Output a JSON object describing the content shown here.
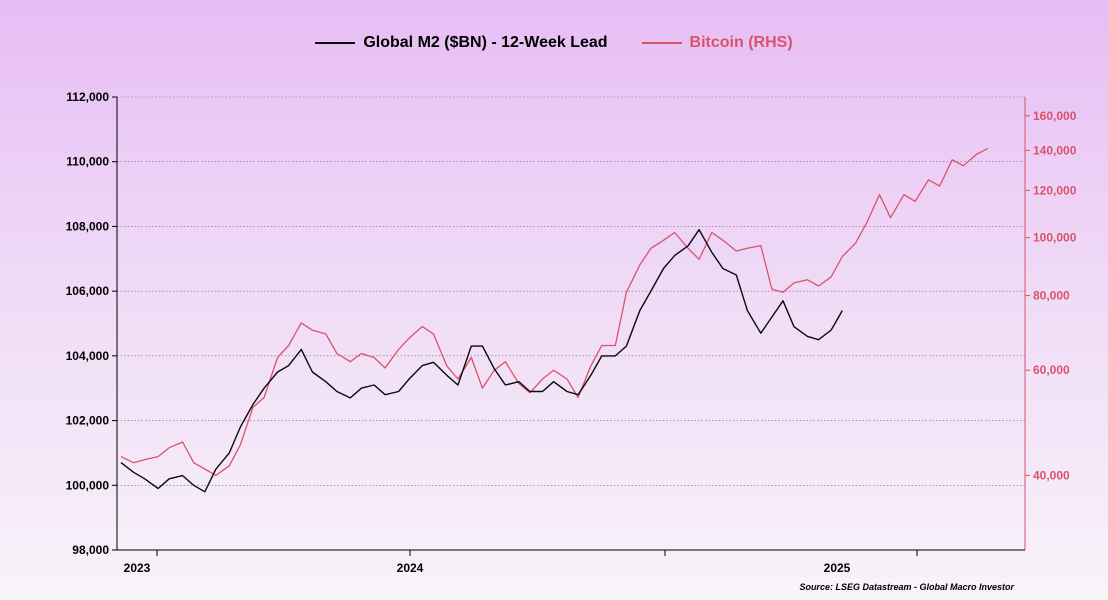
{
  "colors": {
    "m2": "#0a0a0a",
    "bitcoin": "#d9536b",
    "background_top": "#e7bdf5",
    "background_bottom": "#f8f3f9"
  },
  "chart_data": {
    "type": "line",
    "title": "",
    "source": "Source: LSEG Datastream - Global Macro Investor",
    "legend_position": "top-center",
    "grid": true,
    "x_ticks": [
      "2023",
      "2024",
      "2025"
    ],
    "y_left": {
      "label": "",
      "min": 98000,
      "max": 112000,
      "ticks": [
        "98,000",
        "100,000",
        "102,000",
        "104,000",
        "106,000",
        "108,000",
        "110,000",
        "112,000"
      ]
    },
    "y_right": {
      "label": "",
      "scale": "log",
      "min": 30000,
      "max": 172000,
      "ticks": [
        "40,000",
        "60,000",
        "80,000",
        "100,000",
        "120,000",
        "140,000",
        "160,000"
      ]
    },
    "series": [
      {
        "name": "Global M2 ($BN) - 12-Week Lead",
        "axis": "left",
        "x": [
          "2022-11-15",
          "2022-12-01",
          "2022-12-15",
          "2023-01-01",
          "2023-01-15",
          "2023-02-01",
          "2023-02-15",
          "2023-03-01",
          "2023-03-15",
          "2023-04-01",
          "2023-04-15",
          "2023-05-01",
          "2023-05-15",
          "2023-06-01",
          "2023-06-15",
          "2023-07-01",
          "2023-07-15",
          "2023-08-01",
          "2023-08-15",
          "2023-09-01",
          "2023-09-15",
          "2023-10-01",
          "2023-10-15",
          "2023-11-01",
          "2023-11-15",
          "2023-12-01",
          "2023-12-15",
          "2024-01-01",
          "2024-01-15",
          "2024-02-01",
          "2024-02-15",
          "2024-03-01",
          "2024-03-15",
          "2024-04-01",
          "2024-04-15",
          "2024-05-01",
          "2024-05-15",
          "2024-06-01",
          "2024-06-15",
          "2024-07-01",
          "2024-07-15",
          "2024-08-01",
          "2024-08-15",
          "2024-09-01",
          "2024-09-15",
          "2024-10-01",
          "2024-10-15",
          "2024-11-01",
          "2024-11-15",
          "2024-12-01",
          "2024-12-15",
          "2025-01-01",
          "2025-01-15",
          "2025-02-01",
          "2025-02-15",
          "2025-03-01",
          "2025-03-15",
          "2025-04-01",
          "2025-04-15",
          "2025-05-01",
          "2025-05-15"
        ],
        "values": [
          100700,
          100400,
          100200,
          99900,
          100200,
          100300,
          100000,
          99800,
          100500,
          101000,
          101800,
          102500,
          103000,
          103500,
          103700,
          104200,
          103500,
          103200,
          102900,
          102700,
          103000,
          103100,
          102800,
          102900,
          103300,
          103700,
          103800,
          103400,
          103100,
          104300,
          104300,
          103600,
          103100,
          103200,
          102900,
          102900,
          103200,
          102900,
          102800,
          103400,
          104000,
          104000,
          104300,
          105400,
          106000,
          106700,
          107100,
          107400,
          107900,
          107200,
          106700,
          106500,
          105400,
          104700,
          105200,
          105700,
          104900,
          104600,
          104500,
          104800,
          105400
        ]
      },
      {
        "name": "Bitcoin (RHS)",
        "axis": "right",
        "x": [
          "2022-11-15",
          "2022-12-01",
          "2022-12-15",
          "2023-01-01",
          "2023-01-15",
          "2023-02-01",
          "2023-02-15",
          "2023-03-01",
          "2023-03-15",
          "2023-04-01",
          "2023-04-15",
          "2023-05-01",
          "2023-05-15",
          "2023-06-01",
          "2023-06-15",
          "2023-07-01",
          "2023-07-15",
          "2023-08-01",
          "2023-08-15",
          "2023-09-01",
          "2023-09-15",
          "2023-10-01",
          "2023-10-15",
          "2023-11-01",
          "2023-11-15",
          "2023-12-01",
          "2023-12-15",
          "2024-01-01",
          "2024-01-15",
          "2024-02-01",
          "2024-02-15",
          "2024-03-01",
          "2024-03-15",
          "2024-04-01",
          "2024-04-15",
          "2024-05-01",
          "2024-05-15",
          "2024-06-01",
          "2024-06-15",
          "2024-07-01",
          "2024-07-15",
          "2024-08-01",
          "2024-08-15",
          "2024-09-01",
          "2024-09-15",
          "2024-10-01",
          "2024-10-15",
          "2024-11-01",
          "2024-11-15",
          "2024-12-01",
          "2024-12-15",
          "2025-01-01",
          "2025-01-15",
          "2025-02-01",
          "2025-02-15",
          "2025-03-01",
          "2025-03-15",
          "2025-04-01",
          "2025-04-15",
          "2025-05-01",
          "2025-05-15",
          "2025-06-01",
          "2025-06-15",
          "2025-07-01",
          "2025-07-15",
          "2025-08-01",
          "2025-08-15",
          "2025-09-01",
          "2025-09-15",
          "2025-10-01",
          "2025-10-15",
          "2025-11-01",
          "2025-11-15"
        ],
        "values": [
          43000,
          42000,
          42500,
          43000,
          44500,
          45500,
          42000,
          41000,
          40000,
          41500,
          45000,
          52000,
          54000,
          63000,
          66000,
          72000,
          70000,
          69000,
          64000,
          62000,
          64000,
          63000,
          60500,
          65000,
          68000,
          71000,
          69000,
          61000,
          58000,
          63000,
          56000,
          60000,
          62000,
          57000,
          55000,
          58000,
          60000,
          58000,
          54000,
          61000,
          66000,
          66000,
          81000,
          90000,
          96000,
          99000,
          102000,
          96000,
          92000,
          102000,
          99000,
          95000,
          96000,
          97000,
          82000,
          81000,
          84000,
          85000,
          83000,
          86000,
          93000,
          98000,
          106000,
          118000,
          108000,
          118000,
          115000,
          125000,
          122000,
          135000,
          132000,
          138000,
          141000
        ]
      }
    ]
  }
}
